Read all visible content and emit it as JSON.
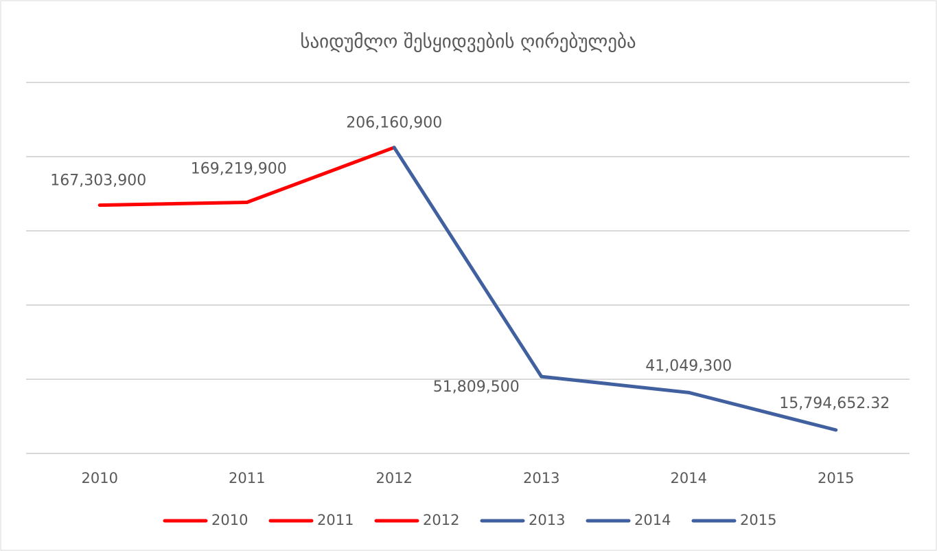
{
  "chart_data": {
    "type": "line",
    "title": "საიდუმლო შესყიდვების ღირებულება",
    "categories": [
      "2010",
      "2011",
      "2012",
      "2013",
      "2014",
      "2015"
    ],
    "values": [
      167303900,
      169219900,
      206160900,
      51809500,
      41049300,
      15794652.32
    ],
    "value_labels": [
      "167,303,900",
      "169,219,900",
      "206,160,900",
      "51,809,500",
      "41,049,300",
      "15,794,652.32"
    ],
    "colors": [
      "#ff0000",
      "#ff0000",
      "#ff0000",
      "#40609f",
      "#40609f",
      "#40609f"
    ],
    "ylim": [
      0,
      250000000
    ],
    "yticks": [
      0,
      50000000,
      100000000,
      150000000,
      200000000,
      250000000
    ],
    "grid": true,
    "legend": "bottom"
  }
}
